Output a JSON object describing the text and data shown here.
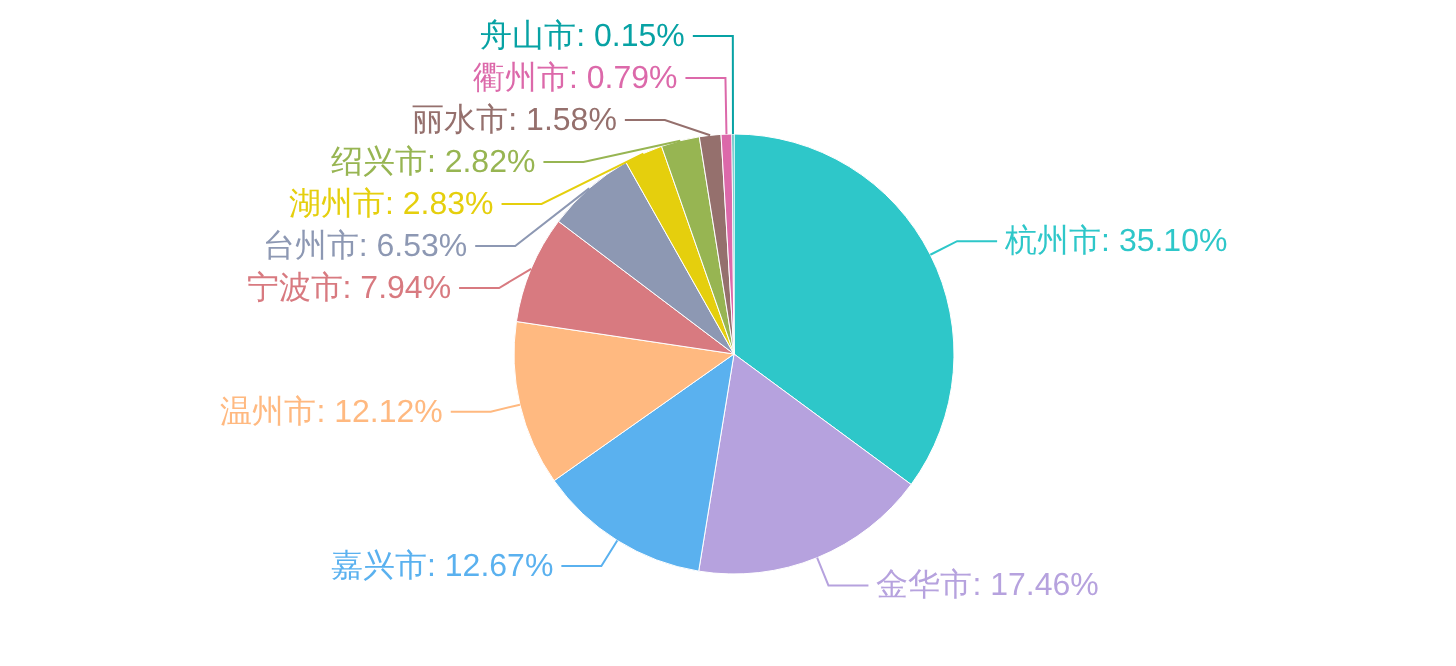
{
  "chart_data": {
    "type": "pie",
    "categories": [
      "杭州市",
      "金华市",
      "嘉兴市",
      "温州市",
      "宁波市",
      "台州市",
      "湖州市",
      "绍兴市",
      "丽水市",
      "衢州市",
      "舟山市"
    ],
    "values": [
      35.1,
      17.46,
      12.67,
      12.12,
      7.94,
      6.53,
      2.83,
      2.82,
      1.58,
      0.79,
      0.15
    ],
    "value_labels": [
      "35.10%",
      "17.46%",
      "12.67%",
      "12.12%",
      "7.94%",
      "6.53%",
      "2.83%",
      "2.82%",
      "1.58%",
      "0.79%",
      "0.15%"
    ],
    "colors": [
      "#2ec7c9",
      "#b6a2de",
      "#5ab1ef",
      "#ffb980",
      "#d87a80",
      "#8d98b3",
      "#e5cf0d",
      "#97b552",
      "#95706d",
      "#dc69aa",
      "#07a2a4"
    ],
    "legend": false
  }
}
